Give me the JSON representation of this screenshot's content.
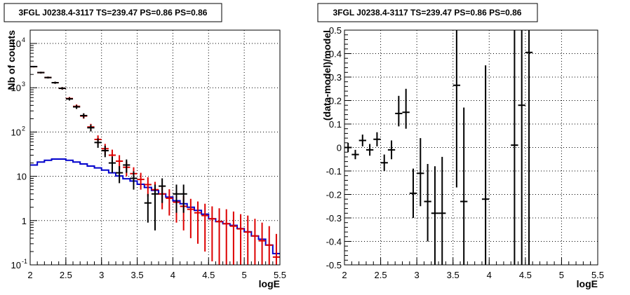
{
  "chart_data": [
    {
      "type": "step",
      "title": "3FGL J0238.4-3117 TS=239.47 PS=0.86 PS=0.86",
      "xlabel": "logE",
      "ylabel": "Nb of counts",
      "xlim": [
        2,
        5.5
      ],
      "ylim": [
        0.1,
        20000
      ],
      "yscale": "log",
      "grid": true,
      "xticks": [
        "2",
        "2.5",
        "3",
        "3.5",
        "4",
        "4.5",
        "5",
        "5.5"
      ],
      "yticks": [
        {
          "value": 0.1,
          "label": "10",
          "exp": "-1"
        },
        {
          "value": 1,
          "label": "1",
          "exp": ""
        },
        {
          "value": 10,
          "label": "10",
          "exp": ""
        },
        {
          "value": 100,
          "label": "10",
          "exp": "2"
        },
        {
          "value": 1000,
          "label": "10",
          "exp": "3"
        },
        {
          "value": 10000,
          "label": "10",
          "exp": "4"
        }
      ],
      "bin_edges": [
        2.0,
        2.1,
        2.2,
        2.3,
        2.4,
        2.5,
        2.6,
        2.7,
        2.8,
        2.9,
        3.0,
        3.1,
        3.2,
        3.3,
        3.4,
        3.5,
        3.6,
        3.7,
        3.8,
        3.9,
        4.0,
        4.1,
        4.2,
        4.3,
        4.4,
        4.5,
        4.6,
        4.7,
        4.8,
        4.9,
        5.0,
        5.1,
        5.2,
        5.3,
        5.4,
        5.5
      ],
      "series": [
        {
          "name": "",
          "kind": "step",
          "color": "#0000cc",
          "values": [
            18,
            21,
            23,
            24.5,
            24.5,
            23,
            21,
            19,
            17,
            15.5,
            13.8,
            12,
            10.2,
            8.8,
            7.8,
            6.6,
            5.6,
            4.8,
            4.0,
            3.4,
            2.8,
            2.4,
            2.0,
            1.7,
            1.4,
            1.1,
            0.95,
            0.85,
            0.78,
            0.66,
            0.56,
            0.45,
            0.38,
            0.28,
            0.18
          ]
        },
        {
          "name": "",
          "kind": "points",
          "color": "#dd0000",
          "points": [
            {
              "x": 2.05,
              "y": 3000,
              "lo": 2890,
              "hi": 3110
            },
            {
              "x": 2.15,
              "y": 2200,
              "lo": 2105,
              "hi": 2295
            },
            {
              "x": 2.25,
              "y": 1700,
              "lo": 1618,
              "hi": 1782
            },
            {
              "x": 2.35,
              "y": 1300,
              "lo": 1228,
              "hi": 1372
            },
            {
              "x": 2.45,
              "y": 970,
              "lo": 908,
              "hi": 1032
            },
            {
              "x": 2.55,
              "y": 570,
              "lo": 523,
              "hi": 617
            },
            {
              "x": 2.65,
              "y": 380,
              "lo": 341,
              "hi": 419
            },
            {
              "x": 2.75,
              "y": 230,
              "lo": 200,
              "hi": 260
            },
            {
              "x": 2.85,
              "y": 130,
              "lo": 107,
              "hi": 153
            },
            {
              "x": 2.95,
              "y": 68,
              "lo": 52,
              "hi": 84
            },
            {
              "x": 3.05,
              "y": 42,
              "lo": 30,
              "hi": 54
            },
            {
              "x": 3.15,
              "y": 30,
              "lo": 20,
              "hi": 40
            },
            {
              "x": 3.25,
              "y": 22,
              "lo": 14,
              "hi": 30
            },
            {
              "x": 3.35,
              "y": 16,
              "lo": 10,
              "hi": 22
            },
            {
              "x": 3.45,
              "y": 11.5,
              "lo": 7,
              "hi": 16
            },
            {
              "x": 3.55,
              "y": 8.5,
              "lo": 5,
              "hi": 12
            },
            {
              "x": 3.65,
              "y": 6.5,
              "lo": 3.5,
              "hi": 9.5
            },
            {
              "x": 3.75,
              "y": 5,
              "lo": 2.6,
              "hi": 7.5
            },
            {
              "x": 3.85,
              "y": 4,
              "lo": 1.8,
              "hi": 6.2
            },
            {
              "x": 3.95,
              "y": 3.2,
              "lo": 1.3,
              "hi": 5.1
            },
            {
              "x": 4.05,
              "y": 2.6,
              "lo": 0.9,
              "hi": 4.3
            },
            {
              "x": 4.15,
              "y": 2.1,
              "lo": 0.6,
              "hi": 3.6
            },
            {
              "x": 4.25,
              "y": 1.8,
              "lo": 0.4,
              "hi": 3.1
            },
            {
              "x": 4.35,
              "y": 1.5,
              "lo": 0.3,
              "hi": 2.7
            },
            {
              "x": 4.45,
              "y": 1.3,
              "lo": 0.2,
              "hi": 2.4
            },
            {
              "x": 4.55,
              "y": 1.1,
              "lo": 0.12,
              "hi": 2.1
            },
            {
              "x": 4.65,
              "y": 0.95,
              "lo": 0.1,
              "hi": 1.9
            },
            {
              "x": 4.75,
              "y": 0.85,
              "lo": 0.1,
              "hi": 1.8
            },
            {
              "x": 4.85,
              "y": 0.75,
              "lo": 0.1,
              "hi": 1.6
            },
            {
              "x": 4.95,
              "y": 0.65,
              "lo": 0.1,
              "hi": 1.4
            },
            {
              "x": 5.05,
              "y": 0.55,
              "lo": 0.1,
              "hi": 1.3
            },
            {
              "x": 5.15,
              "y": 0.45,
              "lo": 0.1,
              "hi": 1.1
            },
            {
              "x": 5.25,
              "y": 0.35,
              "lo": 0.1,
              "hi": 0.9
            },
            {
              "x": 5.35,
              "y": 0.28,
              "lo": 0.1,
              "hi": 0.75
            },
            {
              "x": 5.45,
              "y": 0.15,
              "lo": 0.1,
              "hi": 0.5
            }
          ]
        },
        {
          "name": "",
          "kind": "points",
          "color": "#000000",
          "points": [
            {
              "x": 2.05,
              "y": 3000,
              "lo": 2890,
              "hi": 3110
            },
            {
              "x": 2.15,
              "y": 2200,
              "lo": 2105,
              "hi": 2295
            },
            {
              "x": 2.25,
              "y": 1700,
              "lo": 1618,
              "hi": 1782
            },
            {
              "x": 2.35,
              "y": 1300,
              "lo": 1228,
              "hi": 1372
            },
            {
              "x": 2.45,
              "y": 970,
              "lo": 908,
              "hi": 1032
            },
            {
              "x": 2.55,
              "y": 560,
              "lo": 514,
              "hi": 606
            },
            {
              "x": 2.65,
              "y": 370,
              "lo": 332,
              "hi": 408
            },
            {
              "x": 2.75,
              "y": 235,
              "lo": 205,
              "hi": 265
            },
            {
              "x": 2.85,
              "y": 125,
              "lo": 103,
              "hi": 147
            },
            {
              "x": 2.95,
              "y": 58,
              "lo": 44,
              "hi": 72
            },
            {
              "x": 3.05,
              "y": 38,
              "lo": 27,
              "hi": 49
            },
            {
              "x": 3.15,
              "y": 20,
              "lo": 12,
              "hi": 28
            },
            {
              "x": 3.25,
              "y": 12,
              "lo": 7,
              "hi": 17
            },
            {
              "x": 3.35,
              "y": 18,
              "lo": 12,
              "hi": 24
            },
            {
              "x": 3.45,
              "y": 9,
              "lo": 5,
              "hi": 13
            },
            {
              "x": 3.65,
              "y": 2.5,
              "lo": 0.9,
              "hi": 4
            },
            {
              "x": 3.75,
              "y": 4,
              "lo": 0.6,
              "hi": 6.5
            },
            {
              "x": 3.85,
              "y": 6,
              "lo": 2.5,
              "hi": 9
            },
            {
              "x": 4.05,
              "y": 4,
              "lo": 1.5,
              "hi": 6.5
            },
            {
              "x": 4.15,
              "y": 4,
              "lo": 1.5,
              "hi": 6.5
            }
          ]
        }
      ]
    },
    {
      "type": "errorbar",
      "title": "3FGL J0238.4-3117 TS=239.47 PS=0.86 PS=0.86",
      "xlabel": "logE",
      "ylabel": "(data-model)/model",
      "xlim": [
        2,
        5.5
      ],
      "ylim": [
        -0.5,
        0.5
      ],
      "grid": true,
      "xticks": [
        "2",
        "2.5",
        "3",
        "3.5",
        "4",
        "4.5",
        "5",
        "5.5"
      ],
      "yticks": [
        "-0.5",
        "-0.4",
        "-0.3",
        "-0.2",
        "-0.1",
        "0",
        "0.1",
        "0.2",
        "0.3",
        "0.4",
        "0.5"
      ],
      "series": [
        {
          "name": "",
          "color": "#000000",
          "points": [
            {
              "x": 2.05,
              "y": 0.0,
              "lo": -0.02,
              "hi": 0.02
            },
            {
              "x": 2.15,
              "y": -0.03,
              "lo": -0.05,
              "hi": -0.01
            },
            {
              "x": 2.25,
              "y": 0.03,
              "lo": 0.005,
              "hi": 0.055
            },
            {
              "x": 2.35,
              "y": -0.01,
              "lo": -0.035,
              "hi": 0.015
            },
            {
              "x": 2.45,
              "y": 0.035,
              "lo": 0.005,
              "hi": 0.065
            },
            {
              "x": 2.55,
              "y": -0.065,
              "lo": -0.1,
              "hi": -0.03
            },
            {
              "x": 2.65,
              "y": -0.01,
              "lo": -0.05,
              "hi": 0.03
            },
            {
              "x": 2.75,
              "y": 0.145,
              "lo": 0.09,
              "hi": 0.22
            },
            {
              "x": 2.85,
              "y": 0.15,
              "lo": 0.08,
              "hi": 0.25
            },
            {
              "x": 2.95,
              "y": -0.195,
              "lo": -0.3,
              "hi": -0.09
            },
            {
              "x": 3.05,
              "y": -0.11,
              "lo": -0.25,
              "hi": 0.04
            },
            {
              "x": 3.15,
              "y": -0.23,
              "lo": -0.4,
              "hi": -0.07
            },
            {
              "x": 3.25,
              "y": -0.28,
              "lo": -0.5,
              "hi": -0.08
            },
            {
              "x": 3.35,
              "y": -0.28,
              "lo": -0.5,
              "hi": -0.04
            },
            {
              "x": 3.55,
              "y": 0.265,
              "lo": -0.17,
              "hi": 0.5
            },
            {
              "x": 3.65,
              "y": -0.23,
              "lo": -0.5,
              "hi": 0.17
            },
            {
              "x": 3.95,
              "y": -0.22,
              "lo": -0.5,
              "hi": 0.35
            },
            {
              "x": 4.35,
              "y": 0.01,
              "lo": -0.5,
              "hi": 0.5
            },
            {
              "x": 4.45,
              "y": 0.18,
              "lo": -0.5,
              "hi": 0.5
            },
            {
              "x": 4.55,
              "y": 0.405,
              "lo": -0.5,
              "hi": 0.5
            }
          ]
        }
      ]
    }
  ]
}
